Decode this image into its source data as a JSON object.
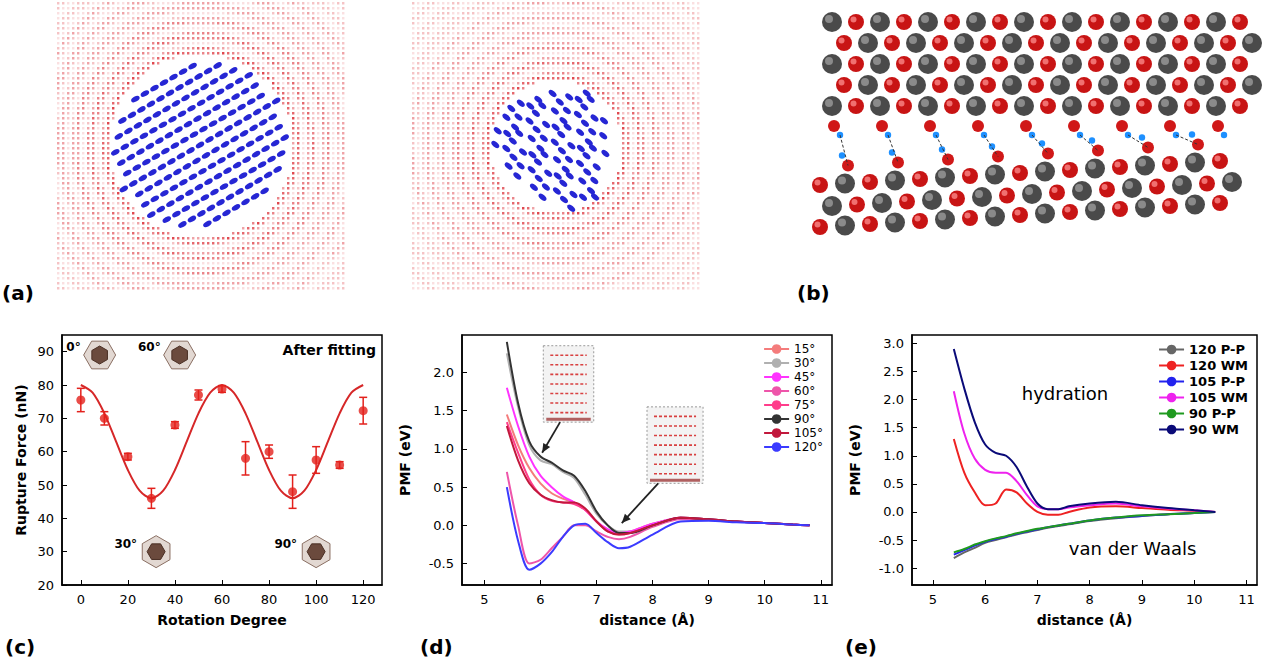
{
  "panels": [
    {
      "label": "(a)"
    },
    {
      "label": "(b)"
    }
  ],
  "chart_data": [
    {
      "label": "(c)",
      "type": "scatter",
      "title": "After fitting",
      "x_label": "Rotation Degree",
      "y_label": "Rupture Force (nN)",
      "annotations": [
        "0°",
        "60°",
        "30°",
        "90°"
      ],
      "xlim": [
        -8,
        128
      ],
      "xticks": [
        0,
        20,
        40,
        60,
        80,
        100,
        120
      ],
      "ylim": [
        20,
        95
      ],
      "yticks": [
        20,
        30,
        40,
        50,
        60,
        70,
        80,
        90
      ],
      "grid": false,
      "series": [
        {
          "type": "scatter",
          "marker": "circle",
          "color": "#e3211c",
          "x": [
            0,
            10,
            20,
            30,
            40,
            50,
            60,
            70,
            80,
            90,
            100,
            110,
            120
          ],
          "values": [
            75.5,
            70,
            58.5,
            46,
            68,
            77,
            78.8,
            58,
            60,
            48,
            57.5,
            56,
            72.3
          ],
          "error": [
            3.5,
            2,
            1,
            3,
            1,
            1.5,
            1,
            5,
            2,
            5,
            4,
            1,
            4
          ]
        },
        {
          "type": "line",
          "line_style": "solid",
          "color": "#d62728",
          "x": [
            0,
            5,
            10,
            15,
            20,
            25,
            30,
            35,
            40,
            45,
            50,
            55,
            60,
            65,
            70,
            75,
            80,
            85,
            90,
            95,
            100,
            105,
            110,
            115,
            120
          ],
          "values": [
            80,
            77.7,
            71.5,
            63,
            54.5,
            48.3,
            46,
            48.3,
            54.5,
            63,
            71.5,
            77.7,
            80,
            77.7,
            71.5,
            63,
            54.5,
            48.3,
            46,
            48.3,
            54.5,
            63,
            71.5,
            77.7,
            80
          ]
        }
      ]
    },
    {
      "label": "(d)",
      "type": "line",
      "x_label": "distance (Å)",
      "y_label": "PMF (eV)",
      "xlim": [
        4.6,
        11.2
      ],
      "xticks": [
        5,
        6,
        7,
        8,
        9,
        10,
        11
      ],
      "ylim": [
        -0.78,
        2.49
      ],
      "yticks": [
        -0.5,
        {
          "value": 0,
          "label": "0.0"
        },
        0.5,
        {
          "value": 1,
          "label": "1.0"
        },
        1.5,
        {
          "value": 2,
          "label": "2.0"
        }
      ],
      "grid": false,
      "legend": "upper right",
      "x": [
        5.4,
        5.6,
        5.8,
        6.0,
        6.2,
        6.4,
        6.6,
        6.8,
        7.0,
        7.2,
        7.4,
        7.6,
        8.0,
        8.5,
        9.0,
        9.5,
        10.0,
        10.5,
        10.8
      ],
      "series": [
        {
          "name": "15°",
          "color": "#f47c7c",
          "values": [
            1.45,
            1.05,
            0.75,
            0.55,
            0.42,
            0.35,
            0.3,
            0.2,
            0.05,
            -0.08,
            -0.1,
            -0.08,
            0.02,
            0.1,
            0.08,
            0.05,
            0.03,
            0.01,
            0
          ]
        },
        {
          "name": "30°",
          "color": "#b0b0b0",
          "values": [
            2.25,
            1.55,
            1.05,
            0.85,
            0.8,
            0.7,
            0.62,
            0.4,
            0.15,
            0.0,
            -0.08,
            -0.08,
            0.0,
            0.1,
            0.08,
            0.05,
            0.03,
            0.01,
            0
          ]
        },
        {
          "name": "45°",
          "color": "#ff33ff",
          "values": [
            1.8,
            1.3,
            0.9,
            0.65,
            0.5,
            0.38,
            0.3,
            0.2,
            0.05,
            -0.05,
            -0.1,
            -0.08,
            0.02,
            0.1,
            0.08,
            0.05,
            0.03,
            0.01,
            0
          ]
        },
        {
          "name": "60°",
          "color": "#ee55aa",
          "values": [
            0.7,
            0.0,
            -0.5,
            -0.45,
            -0.3,
            -0.15,
            0.0,
            0.0,
            -0.08,
            -0.15,
            -0.18,
            -0.15,
            -0.02,
            0.08,
            0.07,
            0.05,
            0.03,
            0.01,
            0
          ]
        },
        {
          "name": "75°",
          "color": "#ff3d8b",
          "values": [
            1.35,
            0.95,
            0.6,
            0.4,
            0.32,
            0.3,
            0.28,
            0.2,
            0.05,
            -0.08,
            -0.12,
            -0.1,
            0.0,
            0.1,
            0.08,
            0.05,
            0.03,
            0.01,
            0
          ]
        },
        {
          "name": "90°",
          "color": "#333333",
          "values": [
            2.4,
            1.6,
            1.1,
            0.9,
            0.82,
            0.72,
            0.65,
            0.45,
            0.18,
            0.0,
            -0.1,
            -0.1,
            0.0,
            0.1,
            0.08,
            0.05,
            0.03,
            0.01,
            0
          ]
        },
        {
          "name": "105°",
          "color": "#c2183c",
          "values": [
            1.3,
            0.85,
            0.55,
            0.4,
            0.33,
            0.3,
            0.3,
            0.22,
            0.05,
            -0.08,
            -0.12,
            -0.1,
            0.0,
            0.1,
            0.08,
            0.05,
            0.03,
            0.01,
            0
          ]
        },
        {
          "name": "120°",
          "color": "#3b3bff",
          "values": [
            0.5,
            -0.2,
            -0.58,
            -0.5,
            -0.35,
            -0.15,
            0.0,
            0.02,
            -0.1,
            -0.22,
            -0.3,
            -0.28,
            -0.12,
            0.05,
            0.06,
            0.04,
            0.03,
            0.01,
            0
          ]
        }
      ]
    },
    {
      "label": "(e)",
      "type": "line",
      "x_label": "distance (Å)",
      "y_label": "PMF (eV)",
      "annotations": [
        "hydration",
        "van der Waals"
      ],
      "xlim": [
        4.6,
        11.2
      ],
      "xticks": [
        5,
        6,
        7,
        8,
        9,
        10,
        11
      ],
      "ylim": [
        -1.3,
        3.15
      ],
      "yticks": [
        {
          "value": -1,
          "label": "-1.0"
        },
        -0.5,
        {
          "value": 0,
          "label": "0.0"
        },
        0.5,
        {
          "value": 1,
          "label": "1.0"
        },
        1.5,
        {
          "value": 2,
          "label": "2.0"
        },
        2.5,
        {
          "value": 3,
          "label": "3.0"
        }
      ],
      "grid": false,
      "legend": "upper right",
      "x": [
        5.4,
        5.6,
        5.8,
        6.0,
        6.2,
        6.4,
        6.6,
        6.8,
        7.0,
        7.2,
        7.4,
        7.6,
        8.0,
        8.5,
        9.0,
        9.5,
        10.0,
        10.4
      ],
      "series": [
        {
          "name": "120 P-P",
          "color": "#666666",
          "values": [
            -0.82,
            -0.72,
            -0.64,
            -0.55,
            -0.5,
            -0.45,
            -0.4,
            -0.36,
            -0.32,
            -0.28,
            -0.25,
            -0.22,
            -0.16,
            -0.11,
            -0.07,
            -0.04,
            -0.02,
            0
          ]
        },
        {
          "name": "120 WM",
          "color": "#ee2222",
          "values": [
            1.3,
            0.7,
            0.35,
            0.12,
            0.15,
            0.4,
            0.35,
            0.15,
            0.0,
            -0.05,
            -0.05,
            0.0,
            0.08,
            0.1,
            0.07,
            0.04,
            0.02,
            0
          ]
        },
        {
          "name": "105 P-P",
          "color": "#2222ee",
          "values": [
            -0.76,
            -0.68,
            -0.6,
            -0.53,
            -0.48,
            -0.44,
            -0.39,
            -0.35,
            -0.31,
            -0.27,
            -0.24,
            -0.21,
            -0.15,
            -0.1,
            -0.07,
            -0.04,
            -0.02,
            0
          ]
        },
        {
          "name": "105 WM",
          "color": "#ee22ee",
          "values": [
            2.15,
            1.4,
            0.95,
            0.75,
            0.7,
            0.7,
            0.55,
            0.3,
            0.1,
            0.05,
            0.05,
            0.08,
            0.12,
            0.15,
            0.1,
            0.06,
            0.03,
            0
          ]
        },
        {
          "name": "90 P-P",
          "color": "#1f9a1f",
          "values": [
            -0.72,
            -0.66,
            -0.58,
            -0.52,
            -0.47,
            -0.43,
            -0.38,
            -0.34,
            -0.3,
            -0.27,
            -0.24,
            -0.21,
            -0.15,
            -0.1,
            -0.06,
            -0.04,
            -0.02,
            0
          ]
        },
        {
          "name": "90 WM",
          "color": "#0a0a78",
          "values": [
            2.9,
            2.2,
            1.6,
            1.2,
            1.05,
            1.0,
            0.8,
            0.45,
            0.15,
            0.05,
            0.05,
            0.1,
            0.15,
            0.18,
            0.12,
            0.07,
            0.03,
            0
          ]
        }
      ]
    }
  ]
}
